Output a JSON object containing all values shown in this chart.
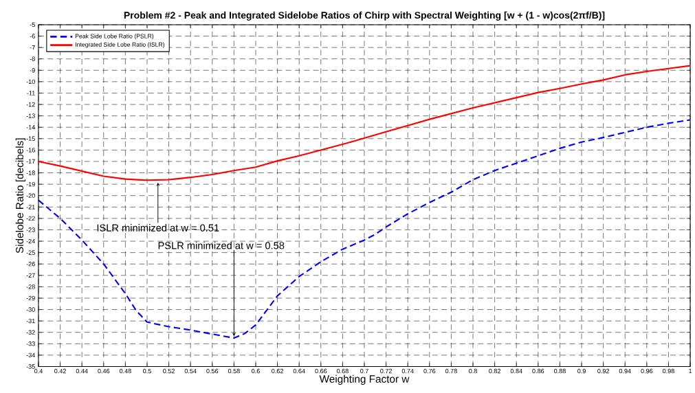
{
  "chart_data": {
    "type": "line",
    "title": "Problem #2 - Peak and Integrated Sidelobe Ratios of Chirp with Spectral Weighting [w + (1 - w)cos(2πf/B)]",
    "xlabel": "Weighting Factor w",
    "ylabel": "Sidelobe Ratio [decibels]",
    "xlim": [
      0.4,
      1
    ],
    "ylim": [
      -35,
      -5
    ],
    "xticks": [
      0.4,
      0.42,
      0.44,
      0.46,
      0.48,
      0.5,
      0.52,
      0.54,
      0.56,
      0.58,
      0.6,
      0.62,
      0.64,
      0.66,
      0.68,
      0.7,
      0.72,
      0.74,
      0.76,
      0.78,
      0.8,
      0.82,
      0.84,
      0.86,
      0.88,
      0.9,
      0.92,
      0.94,
      0.96,
      0.98,
      1
    ],
    "yticks": [
      -35,
      -34,
      -33,
      -32,
      -31,
      -30,
      -29,
      -28,
      -27,
      -26,
      -25,
      -24,
      -23,
      -22,
      -21,
      -20,
      -19,
      -18,
      -17,
      -16,
      -15,
      -14,
      -13,
      -12,
      -11,
      -10,
      -9,
      -8,
      -7,
      -6,
      -5
    ],
    "grid": true,
    "legend": "top left",
    "series": [
      {
        "name": "Peak Side Lobe Ratio (PSLR)",
        "color": "#0000ff",
        "line_style": "dashed",
        "x": [
          0.4,
          0.42,
          0.44,
          0.46,
          0.48,
          0.49,
          0.5,
          0.52,
          0.54,
          0.56,
          0.58,
          0.59,
          0.6,
          0.62,
          0.64,
          0.66,
          0.68,
          0.7,
          0.71,
          0.72,
          0.74,
          0.76,
          0.78,
          0.8,
          0.82,
          0.84,
          0.86,
          0.88,
          0.9,
          0.92,
          0.94,
          0.96,
          0.98,
          1
        ],
        "values": [
          -20.4,
          -22.0,
          -23.9,
          -26.0,
          -28.6,
          -30.1,
          -31.1,
          -31.5,
          -31.8,
          -32.15,
          -32.5,
          -32.1,
          -31.35,
          -28.8,
          -27.1,
          -25.8,
          -24.7,
          -23.9,
          -23.4,
          -22.75,
          -21.6,
          -20.6,
          -19.7,
          -18.6,
          -17.8,
          -17.15,
          -16.5,
          -15.85,
          -15.3,
          -14.9,
          -14.45,
          -14.0,
          -13.65,
          -13.35
        ]
      },
      {
        "name": "Integrated Side Lobe Ratio (ISLR)",
        "color": "#ff0000",
        "line_style": "solid",
        "x": [
          0.4,
          0.42,
          0.44,
          0.46,
          0.48,
          0.5,
          0.52,
          0.54,
          0.56,
          0.58,
          0.6,
          0.62,
          0.64,
          0.66,
          0.68,
          0.7,
          0.72,
          0.74,
          0.76,
          0.78,
          0.8,
          0.82,
          0.84,
          0.86,
          0.88,
          0.9,
          0.92,
          0.94,
          0.96,
          0.98,
          1
        ],
        "values": [
          -17.0,
          -17.4,
          -17.85,
          -18.3,
          -18.55,
          -18.65,
          -18.6,
          -18.4,
          -18.15,
          -17.8,
          -17.5,
          -16.95,
          -16.5,
          -16.0,
          -15.5,
          -14.95,
          -14.4,
          -13.85,
          -13.3,
          -12.8,
          -12.3,
          -11.85,
          -11.4,
          -10.95,
          -10.6,
          -10.2,
          -9.85,
          -9.4,
          -9.1,
          -8.85,
          -8.6
        ]
      }
    ],
    "annotations": [
      {
        "text": "ISLR minimized at w = 0.51",
        "x": 0.51,
        "y": -18.7
      },
      {
        "text": "PSLR minimized at w = 0.58",
        "x": 0.58,
        "y": -32.5
      }
    ]
  }
}
